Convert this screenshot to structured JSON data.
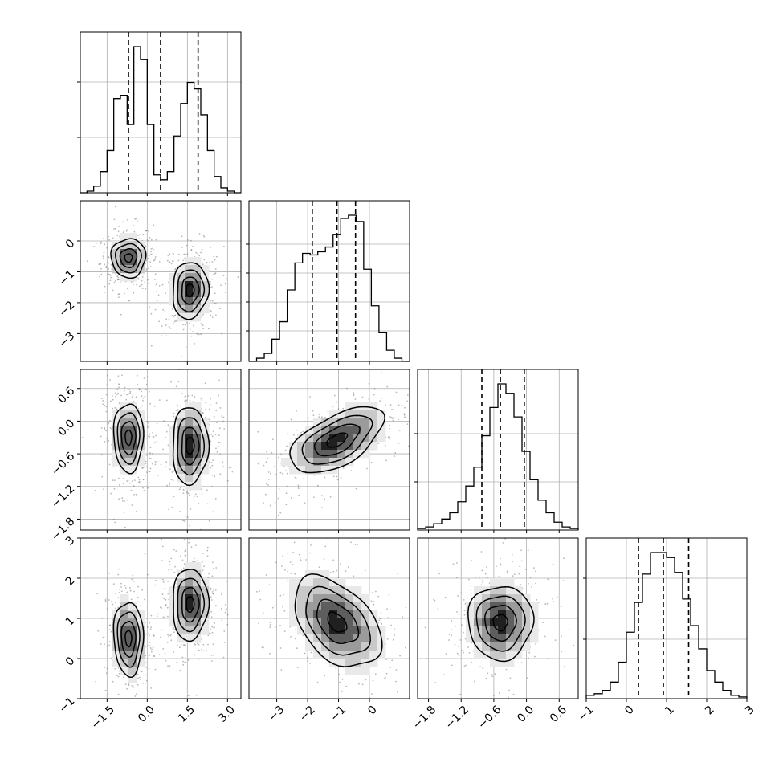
{
  "chart_data": {
    "type": "corner",
    "parameters": 4,
    "grid": true,
    "axis_ranges": [
      [
        -2.5,
        3.5
      ],
      [
        -3.9,
        1.3
      ],
      [
        -2.0,
        0.95
      ],
      [
        -1.0,
        3.0
      ]
    ],
    "ticks": [
      {
        "values": [
          -1.5,
          0.0,
          1.5,
          3.0
        ],
        "labels": [
          "−1.5",
          "0.0",
          "1.5",
          "3.0"
        ]
      },
      {
        "values": [
          -3,
          -2,
          -1,
          0
        ],
        "labels": [
          "−3",
          "−2",
          "−1",
          "0"
        ]
      },
      {
        "values": [
          -1.8,
          -1.2,
          -0.6,
          0.0,
          0.6
        ],
        "labels": [
          "−1.8",
          "−1.2",
          "−0.6",
          "0.0",
          "0.6"
        ]
      },
      {
        "values": [
          -1,
          0,
          1,
          2,
          3
        ],
        "labels": [
          "−1",
          "0",
          "1",
          "2",
          "3"
        ]
      }
    ],
    "quantiles": [
      [
        -0.7,
        0.5,
        1.9
      ],
      [
        -1.85,
        -1.05,
        -0.45
      ],
      [
        -0.82,
        -0.48,
        -0.04
      ],
      [
        0.3,
        0.92,
        1.55
      ]
    ],
    "histograms": [
      [
        0.0,
        0.01,
        0.04,
        0.13,
        0.26,
        0.58,
        0.6,
        0.42,
        0.9,
        0.82,
        0.42,
        0.11,
        0.08,
        0.13,
        0.35,
        0.55,
        0.68,
        0.64,
        0.48,
        0.26,
        0.1,
        0.03,
        0.01,
        0.0
      ],
      [
        0.0,
        0.02,
        0.05,
        0.14,
        0.25,
        0.45,
        0.62,
        0.68,
        0.67,
        0.69,
        0.72,
        0.8,
        0.9,
        0.92,
        0.88,
        0.58,
        0.35,
        0.18,
        0.07,
        0.02,
        0.0
      ],
      [
        0.01,
        0.02,
        0.04,
        0.07,
        0.11,
        0.18,
        0.28,
        0.4,
        0.6,
        0.78,
        0.93,
        0.87,
        0.72,
        0.5,
        0.32,
        0.19,
        0.11,
        0.05,
        0.02,
        0.01
      ],
      [
        0.02,
        0.03,
        0.05,
        0.1,
        0.22,
        0.4,
        0.58,
        0.75,
        0.88,
        0.88,
        0.85,
        0.76,
        0.6,
        0.44,
        0.3,
        0.17,
        0.1,
        0.05,
        0.02,
        0.01
      ]
    ],
    "contours": [
      {
        "row": 1,
        "col": 0,
        "center": [
          -0.7,
          -0.55
        ],
        "spread": [
          0.56,
          0.55
        ],
        "rotation": 0.15
      },
      {
        "row": 1,
        "col": 0,
        "center": [
          1.6,
          -1.6
        ],
        "spread": [
          0.58,
          0.8
        ],
        "rotation": -0.1
      },
      {
        "row": 2,
        "col": 0,
        "center": [
          -0.7,
          -0.3
        ],
        "spread": [
          0.48,
          0.55
        ],
        "rotation": 0.05
      },
      {
        "row": 2,
        "col": 0,
        "center": [
          1.6,
          -0.45
        ],
        "spread": [
          0.58,
          0.62
        ],
        "rotation": -0.15
      },
      {
        "row": 2,
        "col": 1,
        "center": [
          -1.05,
          -0.35
        ],
        "spread": [
          1.35,
          0.42
        ],
        "rotation": 0.25
      },
      {
        "row": 3,
        "col": 0,
        "center": [
          -0.7,
          0.5
        ],
        "spread": [
          0.48,
          0.8
        ],
        "rotation": 0.05
      },
      {
        "row": 3,
        "col": 0,
        "center": [
          1.6,
          1.35
        ],
        "spread": [
          0.58,
          0.78
        ],
        "rotation": -0.05
      },
      {
        "row": 3,
        "col": 1,
        "center": [
          -1.05,
          0.9
        ],
        "spread": [
          1.35,
          0.8
        ],
        "rotation": -0.55
      },
      {
        "row": 3,
        "col": 2,
        "center": [
          -0.48,
          0.9
        ],
        "spread": [
          0.52,
          0.8
        ],
        "rotation": 0.0
      }
    ],
    "contour_levels": [
      0.25,
      0.55,
      0.85,
      1.15
    ],
    "density_colors": [
      "#ffffff",
      "#e9e9e9",
      "#c9c9c9",
      "#9b9b9b",
      "#5e5e5e",
      "#202020"
    ]
  }
}
